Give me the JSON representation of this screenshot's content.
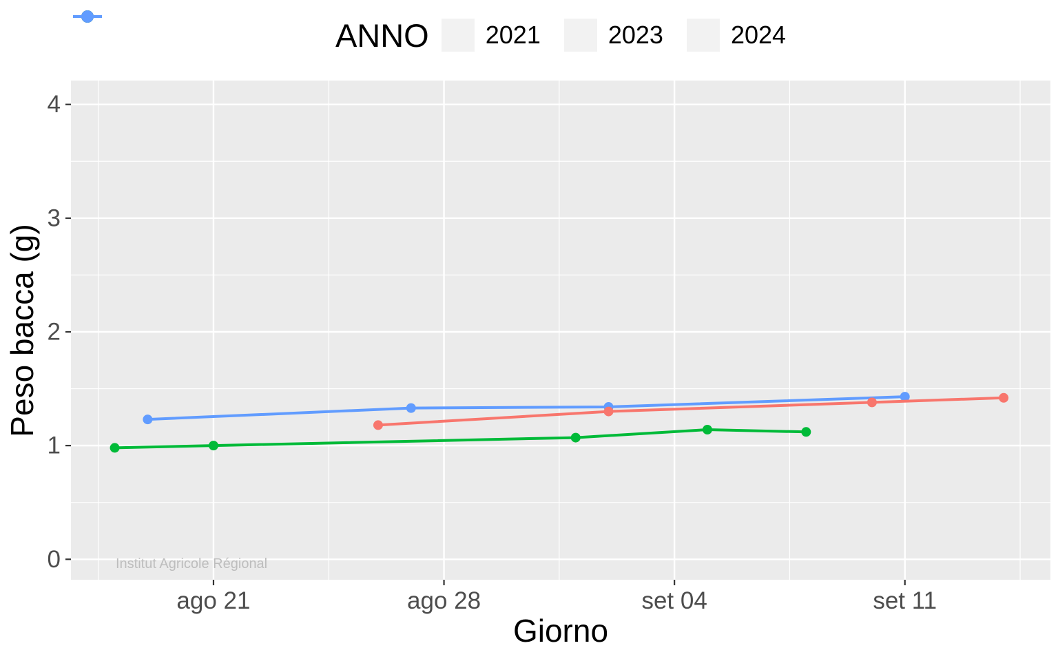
{
  "watermark": "Institut Agricole Régional",
  "chart_data": {
    "type": "line",
    "legend_title": "ANNO",
    "legend_position": "top",
    "xlabel": "Giorno",
    "ylabel": "Peso bacca (g)",
    "panel_background": "#EBEBEB",
    "gridline_color": "#FFFFFF",
    "tick_mark_color": "#333333",
    "tick_label_color": "#4D4D4D",
    "legend_key_background": "#F2F2F2",
    "x_unit": "days relative to ago 21",
    "x_range": [
      -4.33,
      25.42
    ],
    "y_range": [
      -0.18,
      4.21
    ],
    "x_ticks": [
      {
        "x": 0,
        "label": "ago 21"
      },
      {
        "x": 7,
        "label": "ago 28"
      },
      {
        "x": 14,
        "label": "set 04"
      },
      {
        "x": 21,
        "label": "set 11"
      }
    ],
    "x_minor_ticks": [
      -3.5,
      3.5,
      10.5,
      17.5,
      24.5
    ],
    "y_ticks": [
      {
        "y": 0,
        "label": "0"
      },
      {
        "y": 1,
        "label": "1"
      },
      {
        "y": 2,
        "label": "2"
      },
      {
        "y": 3,
        "label": "3"
      },
      {
        "y": 4,
        "label": "4"
      }
    ],
    "y_minor_ticks": [
      0.5,
      1.5,
      2.5,
      3.5
    ],
    "series": [
      {
        "name": "2021",
        "color": "#F8766D",
        "points": [
          {
            "date": "ago 26",
            "x": 5,
            "y": 1.18
          },
          {
            "date": "set 02",
            "x": 12,
            "y": 1.3
          },
          {
            "date": "set 10",
            "x": 20,
            "y": 1.38
          },
          {
            "date": "set 14",
            "x": 24,
            "y": 1.42
          }
        ]
      },
      {
        "name": "2023",
        "color": "#00BA38",
        "points": [
          {
            "date": "ago 18",
            "x": -3,
            "y": 0.98
          },
          {
            "date": "ago 21",
            "x": 0,
            "y": 1.0
          },
          {
            "date": "set 01",
            "x": 11,
            "y": 1.07
          },
          {
            "date": "set 05",
            "x": 15,
            "y": 1.14
          },
          {
            "date": "set 08",
            "x": 18,
            "y": 1.12
          }
        ]
      },
      {
        "name": "2024",
        "color": "#619CFF",
        "points": [
          {
            "date": "ago 19",
            "x": -2,
            "y": 1.23
          },
          {
            "date": "ago 27",
            "x": 6,
            "y": 1.33
          },
          {
            "date": "set 02",
            "x": 12,
            "y": 1.34
          },
          {
            "date": "set 11",
            "x": 21,
            "y": 1.43
          }
        ]
      }
    ],
    "draw_order": [
      "2023",
      "2024",
      "2021"
    ]
  }
}
